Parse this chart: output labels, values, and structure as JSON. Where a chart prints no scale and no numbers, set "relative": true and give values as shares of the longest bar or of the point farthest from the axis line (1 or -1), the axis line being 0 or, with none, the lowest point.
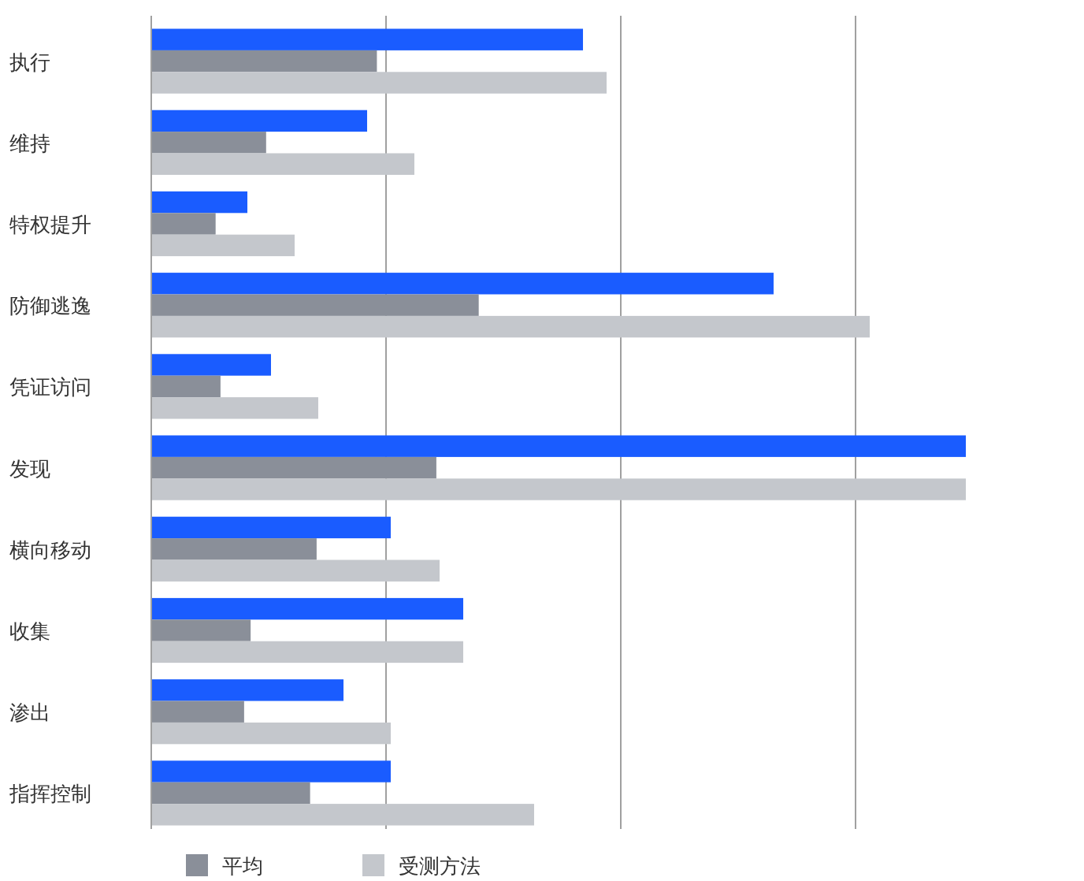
{
  "chart_data": {
    "type": "bar",
    "orientation": "horizontal",
    "relative": true,
    "grid": "x",
    "legend": "bottom",
    "categories": [
      "执行",
      "维持",
      "特权提升",
      "防御逃逸",
      "凭证访问",
      "发现",
      "横向移动",
      "收集",
      "渗出",
      "指挥控制"
    ],
    "series": [
      {
        "color": "#1a5cff",
        "values": [
          0.53,
          0.265,
          0.118,
          0.764,
          0.147,
          1,
          0.294,
          0.383,
          0.236,
          0.294
        ]
      },
      {
        "name": "平均",
        "color": "#8a8f99",
        "values": [
          0.277,
          0.141,
          0.079,
          0.402,
          0.085,
          0.35,
          0.203,
          0.122,
          0.114,
          0.195
        ]
      },
      {
        "name": "受测方法",
        "color": "#c4c7cc",
        "values": [
          0.559,
          0.323,
          0.176,
          0.882,
          0.205,
          1,
          0.354,
          0.383,
          0.294,
          0.47
        ]
      }
    ]
  }
}
